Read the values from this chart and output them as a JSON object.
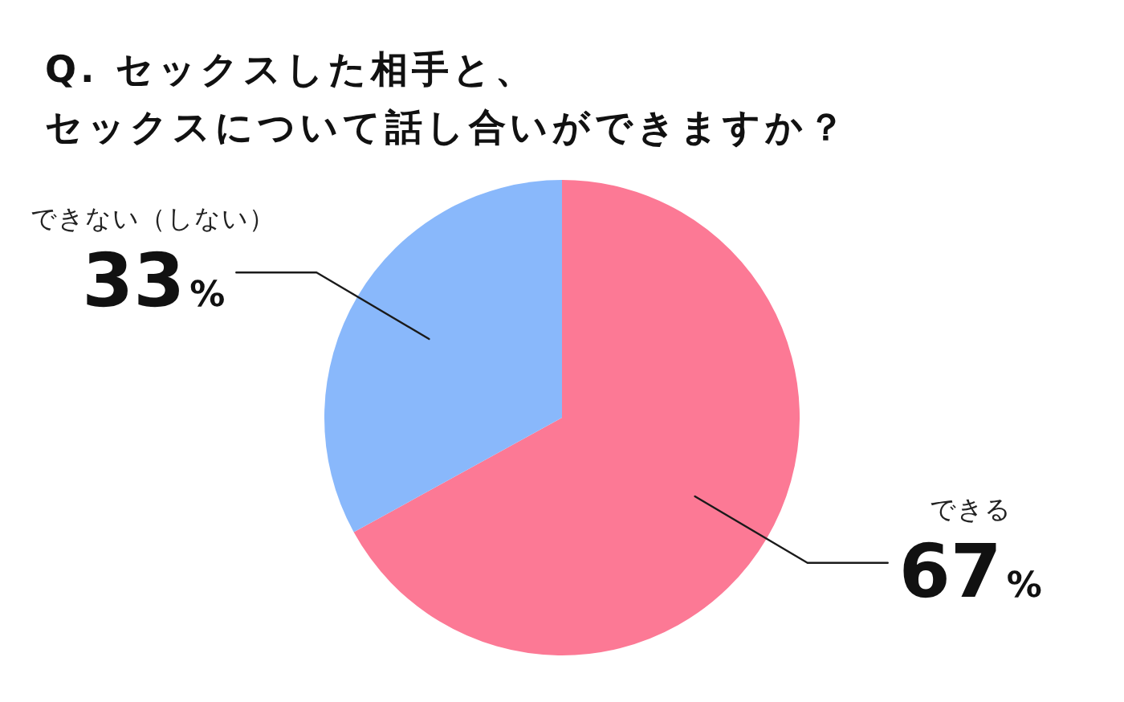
{
  "chart_data": {
    "type": "pie",
    "title": "Q. セックスした相手と、セックスについて話し合いができますか？",
    "categories": [
      "できる",
      "できない（しない）"
    ],
    "values": [
      67,
      33
    ],
    "colors": [
      "#fc7995",
      "#89b8fb"
    ],
    "value_labels": [
      "67%",
      "33%"
    ]
  }
}
